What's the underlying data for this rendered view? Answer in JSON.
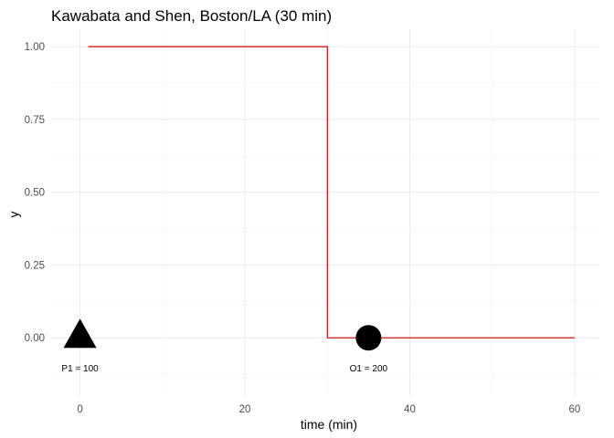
{
  "chart_data": {
    "type": "line",
    "title": "Kawabata and Shen, Boston/LA (30 min)",
    "xlabel": "time (min)",
    "ylabel": "y",
    "xlim": [
      -3.5,
      63
    ],
    "ylim": [
      -0.2,
      1.06
    ],
    "x_ticks": [
      0,
      20,
      40,
      60
    ],
    "x_tick_labels": [
      "0",
      "20",
      "40",
      "60"
    ],
    "y_ticks": [
      0.0,
      0.25,
      0.5,
      0.75,
      1.0
    ],
    "y_tick_labels": [
      "0.00",
      "0.25",
      "0.50",
      "0.75",
      "1.00"
    ],
    "grid": true,
    "series": [
      {
        "color": "#cc0000",
        "x": [
          1,
          30,
          30,
          60
        ],
        "y": [
          1.0,
          1.0,
          0.0,
          0.0
        ]
      }
    ],
    "markers": [
      {
        "shape": "triangle",
        "x": 0,
        "y": 0,
        "label": "P1 = 100"
      },
      {
        "shape": "circle",
        "x": 35,
        "y": 0,
        "label": "O1 = 200"
      }
    ]
  }
}
